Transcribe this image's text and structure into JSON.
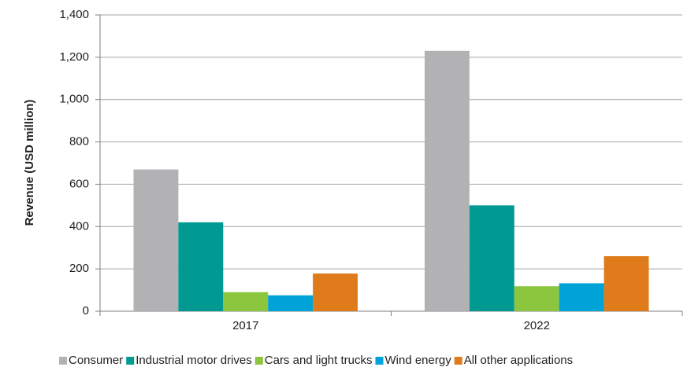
{
  "chart_data": {
    "type": "bar",
    "y_label": "Revenue (USD million)",
    "categories": [
      "2017",
      "2022"
    ],
    "series": [
      {
        "name": "Consumer",
        "color": "#b2b2b4",
        "values": [
          670,
          1230
        ]
      },
      {
        "name": "Industrial motor drives",
        "color": "#009a92",
        "values": [
          420,
          500
        ]
      },
      {
        "name": "Cars and light trucks",
        "color": "#8cc63e",
        "values": [
          90,
          118
        ]
      },
      {
        "name": "Wind energy",
        "color": "#00a3d8",
        "values": [
          75,
          132
        ]
      },
      {
        "name": "All other applications",
        "color": "#df7b1b",
        "values": [
          178,
          260
        ]
      }
    ],
    "ylim": [
      0,
      1400
    ],
    "yticks": [
      0,
      200,
      400,
      600,
      800,
      {
        "value": 1000,
        "label": "1,000"
      },
      {
        "value": 1200,
        "label": "1,200"
      },
      {
        "value": 1400,
        "label": "1,400"
      }
    ],
    "grid": true,
    "legend": "bottom"
  }
}
